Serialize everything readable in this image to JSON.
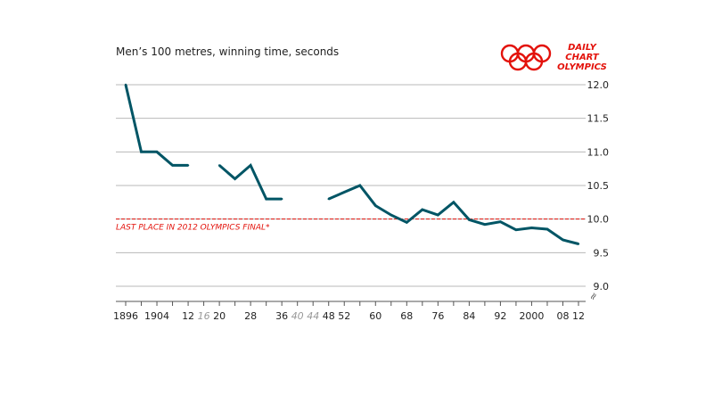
{
  "chart_data": {
    "type": "line",
    "title": "Men’s 100 metres, winning time, seconds",
    "xlabel": "",
    "ylabel": "",
    "ylim": [
      9.0,
      12.0
    ],
    "y_ticks": [
      "12.0",
      "11.5",
      "11.0",
      "10.5",
      "10.0",
      "9.5",
      "9.0"
    ],
    "x_tick_labels": [
      {
        "year": 1896,
        "label": "1896",
        "muted": false
      },
      {
        "year": 1904,
        "label": "1904",
        "muted": false
      },
      {
        "year": 1912,
        "label": "12",
        "muted": false
      },
      {
        "year": 1916,
        "label": "16",
        "muted": true
      },
      {
        "year": 1920,
        "label": "20",
        "muted": false
      },
      {
        "year": 1928,
        "label": "28",
        "muted": false
      },
      {
        "year": 1936,
        "label": "36",
        "muted": false
      },
      {
        "year": 1940,
        "label": "40",
        "muted": true
      },
      {
        "year": 1944,
        "label": "44",
        "muted": true
      },
      {
        "year": 1948,
        "label": "48",
        "muted": false
      },
      {
        "year": 1952,
        "label": "52",
        "muted": false
      },
      {
        "year": 1960,
        "label": "60",
        "muted": false
      },
      {
        "year": 1968,
        "label": "68",
        "muted": false
      },
      {
        "year": 1976,
        "label": "76",
        "muted": false
      },
      {
        "year": 1984,
        "label": "84",
        "muted": false
      },
      {
        "year": 1992,
        "label": "92",
        "muted": false
      },
      {
        "year": 2000,
        "label": "2000",
        "muted": false
      },
      {
        "year": 2008,
        "label": "08",
        "muted": false
      },
      {
        "year": 2012,
        "label": "12",
        "muted": false
      }
    ],
    "series": [
      {
        "segments": [
          [
            [
              1896,
              12.0
            ],
            [
              1900,
              11.0
            ],
            [
              1904,
              11.0
            ],
            [
              1908,
              10.8
            ],
            [
              1912,
              10.8
            ]
          ],
          [
            [
              1920,
              10.8
            ],
            [
              1924,
              10.6
            ],
            [
              1928,
              10.8
            ],
            [
              1932,
              10.3
            ],
            [
              1936,
              10.3
            ]
          ],
          [
            [
              1948,
              10.3
            ],
            [
              1952,
              10.4
            ],
            [
              1956,
              10.5
            ],
            [
              1960,
              10.2
            ],
            [
              1964,
              10.06
            ],
            [
              1968,
              9.95
            ],
            [
              1972,
              10.14
            ],
            [
              1976,
              10.06
            ],
            [
              1980,
              10.25
            ],
            [
              1984,
              9.99
            ],
            [
              1988,
              9.92
            ],
            [
              1992,
              9.96
            ],
            [
              1996,
              9.84
            ],
            [
              2000,
              9.87
            ],
            [
              2004,
              9.85
            ],
            [
              2008,
              9.69
            ],
            [
              2012,
              9.63
            ]
          ]
        ]
      }
    ],
    "reference_line": {
      "value": 10.0,
      "label": "LAST PLACE IN 2012 OLYMPICS FINAL*"
    },
    "grid": true,
    "colors": {
      "line": "#005565",
      "reference": "#e3120b",
      "grid": "#b8b8b8",
      "muted_tick": "#999999"
    }
  },
  "logo": {
    "line1": "DAILY",
    "line2": "CHART",
    "line3": "OLYMPICS"
  },
  "axis_break_symbol": "≈"
}
